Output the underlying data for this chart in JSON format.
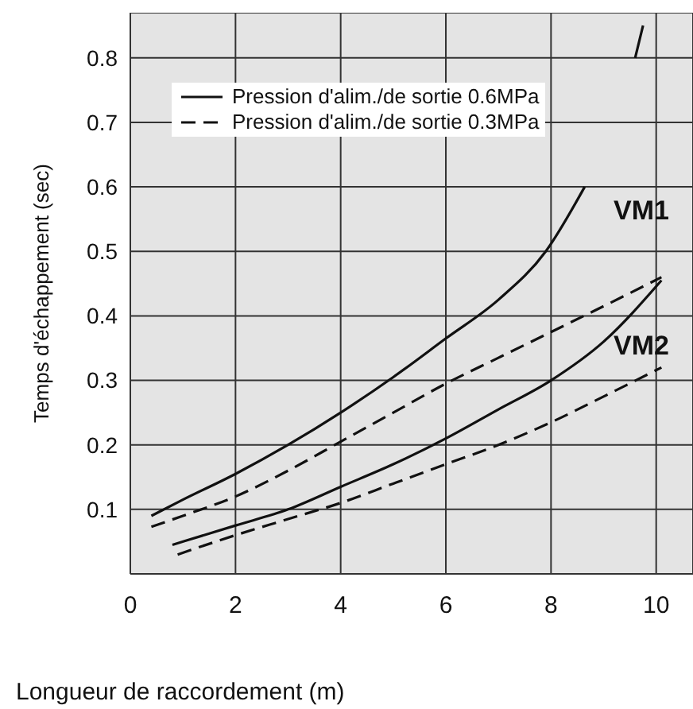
{
  "chart_data": {
    "type": "line",
    "xlabel": "Longueur de raccordement (m)",
    "ylabel": "Temps d'échappement  (sec)",
    "xlim": [
      0,
      10.7
    ],
    "xticks": [
      0,
      2,
      4,
      6,
      8,
      10
    ],
    "ylim": [
      0,
      0.87
    ],
    "yticks": [
      0.1,
      0.2,
      0.3,
      0.4,
      0.5,
      0.6,
      0.7,
      0.8
    ],
    "grid": true,
    "legend": "top",
    "marker": "none",
    "series": [
      {
        "name": "Pression d'alim./de sortie 0.6MPa",
        "color": "#111111",
        "line_style": "solid",
        "x": [
          0.4,
          1,
          2,
          3,
          4,
          5,
          6,
          7,
          7.9,
          8.64,
          9,
          9.6,
          9.75
        ],
        "values": [
          0.09,
          0.115,
          0.155,
          0.2,
          0.25,
          0.305,
          0.365,
          0.425,
          0.5,
          0.6,
          null,
          0.8,
          0.85
        ]
      },
      {
        "name": "Pression d'alim./de sortie 0.3MPa",
        "color": "#111111",
        "line_style": "dashed",
        "x": [
          0.4,
          1,
          2,
          3,
          4,
          5,
          6,
          7,
          8,
          9,
          10.1
        ],
        "values": [
          0.073,
          0.09,
          0.12,
          0.16,
          0.205,
          0.25,
          0.295,
          0.335,
          0.375,
          0.415,
          0.46
        ]
      },
      {
        "color": "#111111",
        "line_style": "solid",
        "x": [
          0.8,
          2,
          3,
          4,
          5,
          6,
          7,
          8,
          9,
          10.1
        ],
        "values": [
          0.045,
          0.075,
          0.1,
          0.135,
          0.17,
          0.21,
          0.255,
          0.3,
          0.36,
          0.455
        ]
      },
      {
        "color": "#111111",
        "line_style": "dashed",
        "x": [
          0.9,
          2,
          3,
          4,
          5,
          6,
          7,
          8,
          9,
          10.1
        ],
        "values": [
          0.03,
          0.06,
          0.085,
          0.11,
          0.14,
          0.17,
          0.2,
          0.235,
          0.275,
          0.32
        ]
      }
    ],
    "annotations": [
      "VM1",
      "VM2"
    ]
  }
}
